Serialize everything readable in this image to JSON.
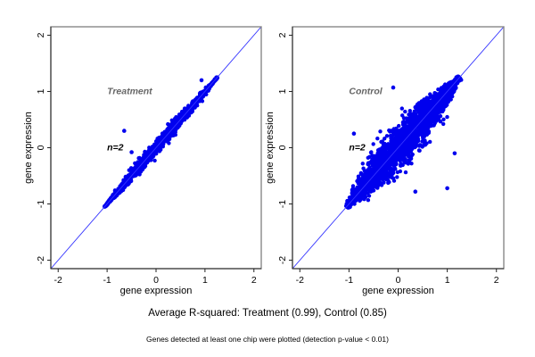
{
  "chart_data": [
    {
      "type": "scatter",
      "title": "Treatment",
      "annotation": "n=2",
      "xlabel": "gene expression",
      "ylabel": "gene expression",
      "xlim": [
        -2.15,
        2.15
      ],
      "ylim": [
        -2.15,
        2.15
      ],
      "xticks": [
        -2,
        -1,
        0,
        1,
        2
      ],
      "yticks": [
        -2,
        -1,
        0,
        1,
        2
      ],
      "xtick_labels": [
        "-2",
        "-1",
        "0",
        "1",
        "2"
      ],
      "ytick_labels": [
        "-2",
        "-1",
        "0",
        "1",
        "2"
      ],
      "reference_line": {
        "slope": 1,
        "intercept": 0
      },
      "grid": false,
      "point_color": "#0000ee",
      "line_color": "#3333ff",
      "spread": 0.09,
      "x_range": [
        -1.05,
        1.25
      ],
      "outliers": [
        [
          -0.65,
          0.3
        ],
        [
          -0.5,
          -0.08
        ],
        [
          0.93,
          1.2
        ]
      ]
    },
    {
      "type": "scatter",
      "title": "Control",
      "annotation": "n=2",
      "xlabel": "gene expression",
      "ylabel": "gene expression",
      "xlim": [
        -2.15,
        2.15
      ],
      "ylim": [
        -2.15,
        2.15
      ],
      "xticks": [
        -2,
        -1,
        0,
        1,
        2
      ],
      "yticks": [
        -2,
        -1,
        0,
        1,
        2
      ],
      "xtick_labels": [
        "-2",
        "-1",
        "0",
        "1",
        "2"
      ],
      "ytick_labels": [
        "-2",
        "-1",
        "0",
        "1",
        "2"
      ],
      "reference_line": {
        "slope": 1,
        "intercept": 0
      },
      "grid": false,
      "point_color": "#0000ee",
      "line_color": "#3333ff",
      "spread": 0.3,
      "x_range": [
        -1.05,
        1.25
      ],
      "outliers": [
        [
          -0.9,
          0.25
        ],
        [
          1.0,
          -0.72
        ],
        [
          0.35,
          -0.78
        ],
        [
          -0.1,
          1.07
        ],
        [
          1.15,
          -0.1
        ]
      ]
    }
  ],
  "footer": {
    "summary": "Average R-squared: Treatment (0.99), Control (0.85)",
    "note": "Genes detected at least one chip were plotted (detection p-value < 0.01)"
  }
}
